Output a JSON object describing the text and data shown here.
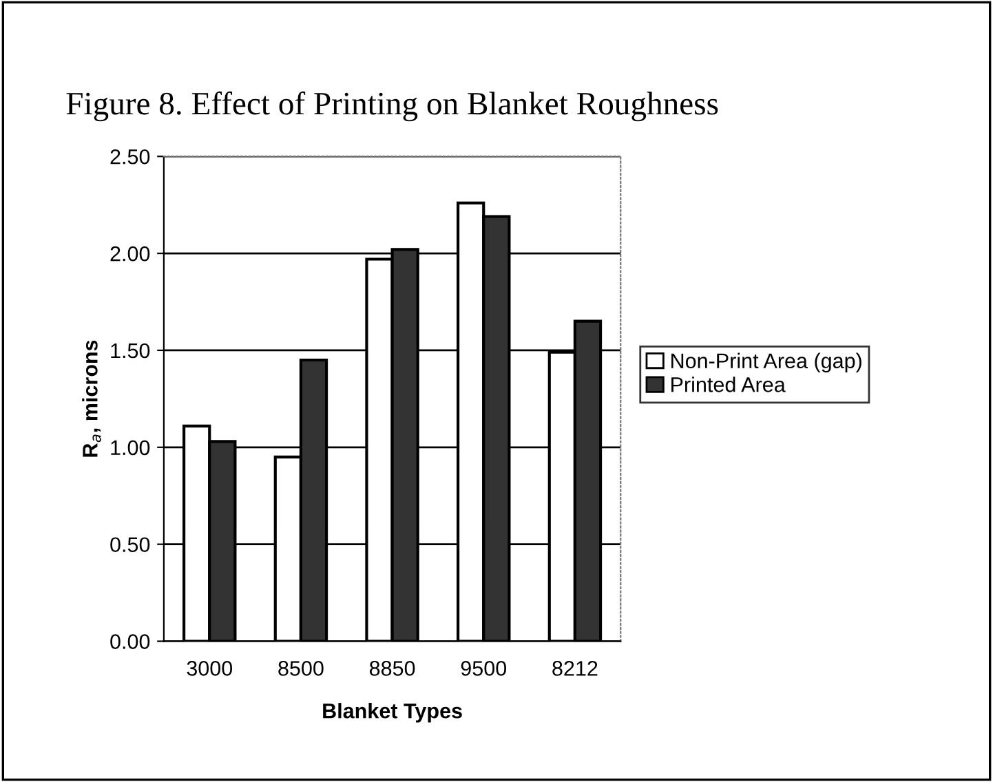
{
  "chart_data": {
    "type": "bar",
    "title": "Figure 8. Effect of Printing on Blanket Roughness",
    "xlabel": "Blanket Types",
    "ylabel": "R$_{a}$, microns",
    "categories": [
      "3000",
      "8500",
      "8850",
      "9500",
      "8212"
    ],
    "series": [
      {
        "name": "Non-Print Area (gap)",
        "color": "#ffffff",
        "values": [
          1.11,
          0.95,
          1.97,
          2.26,
          1.49
        ]
      },
      {
        "name": "Printed Area",
        "color": "#333333",
        "values": [
          1.03,
          1.45,
          2.02,
          2.19,
          1.65
        ]
      }
    ],
    "ylim": [
      0,
      2.5
    ],
    "yticks": [
      {
        "value": 0,
        "label": "0.00"
      },
      {
        "value": 0.5,
        "label": "0.50"
      },
      {
        "value": 1.0,
        "label": "1.00"
      },
      {
        "value": 1.5,
        "label": "1.50"
      },
      {
        "value": 2.0,
        "label": "2.00"
      },
      {
        "value": 2.5,
        "label": "2.50"
      }
    ],
    "grid": "y",
    "legend": "right"
  }
}
